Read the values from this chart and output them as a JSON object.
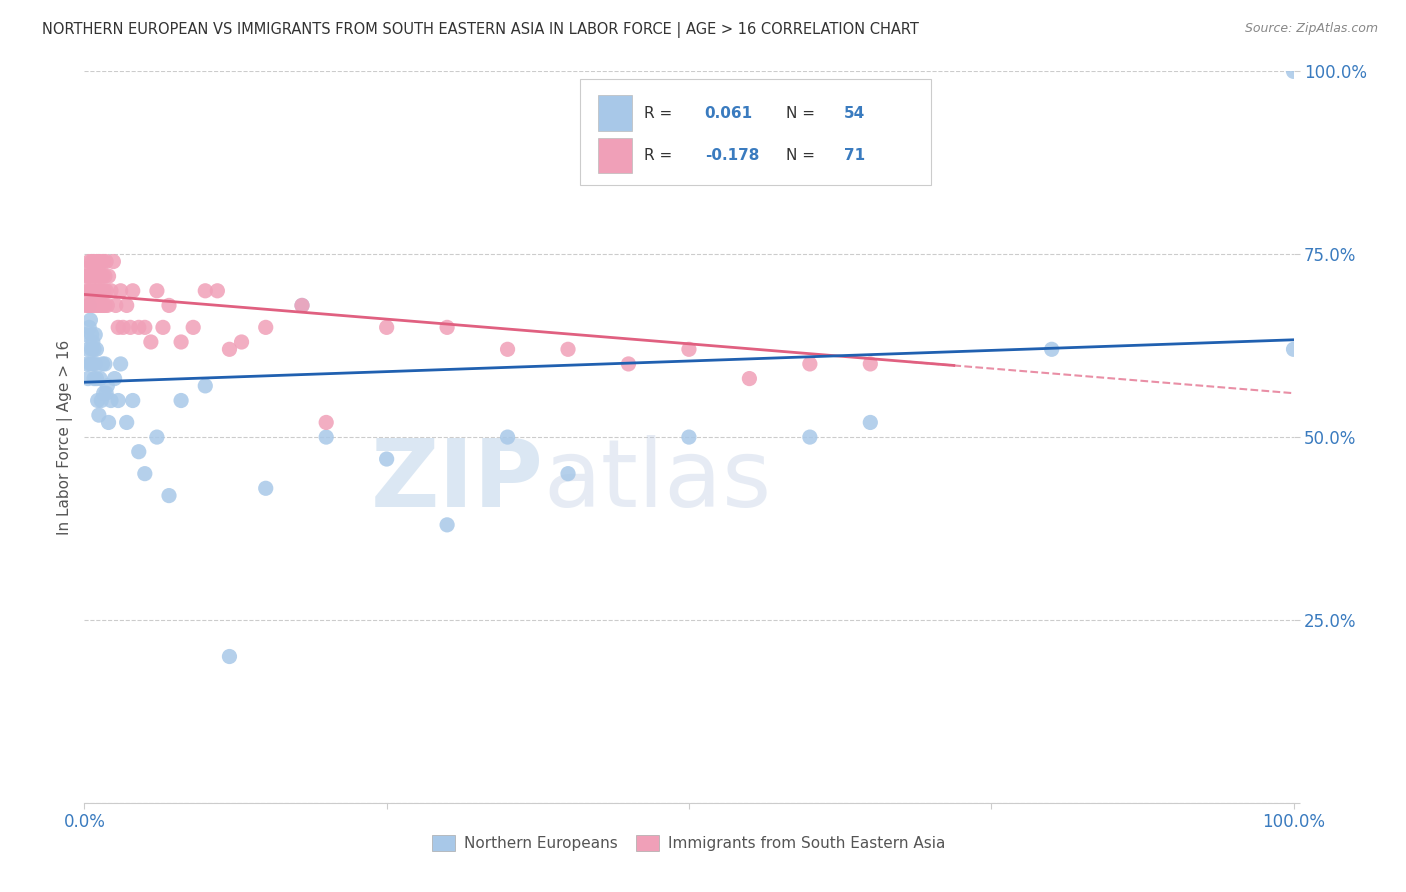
{
  "title": "NORTHERN EUROPEAN VS IMMIGRANTS FROM SOUTH EASTERN ASIA IN LABOR FORCE | AGE > 16 CORRELATION CHART",
  "source": "Source: ZipAtlas.com",
  "ylabel": "In Labor Force | Age > 16",
  "watermark_left": "ZIP",
  "watermark_right": "atlas",
  "blue_color": "#a8c8e8",
  "pink_color": "#f0a0b8",
  "blue_line_color": "#2060b0",
  "pink_line_color": "#e06080",
  "legend_R1": "0.061",
  "legend_N1": "54",
  "legend_R2": "-0.178",
  "legend_N2": "71",
  "blue_scatter_x": [
    0.001,
    0.002,
    0.003,
    0.003,
    0.004,
    0.004,
    0.005,
    0.005,
    0.006,
    0.006,
    0.007,
    0.007,
    0.008,
    0.008,
    0.009,
    0.009,
    0.01,
    0.01,
    0.011,
    0.012,
    0.013,
    0.014,
    0.015,
    0.016,
    0.017,
    0.018,
    0.019,
    0.02,
    0.022,
    0.025,
    0.028,
    0.03,
    0.035,
    0.04,
    0.045,
    0.05,
    0.06,
    0.07,
    0.08,
    0.1,
    0.12,
    0.15,
    0.18,
    0.2,
    0.25,
    0.3,
    0.35,
    0.4,
    0.5,
    0.6,
    0.65,
    0.8,
    1.0,
    1.0
  ],
  "blue_scatter_y": [
    0.64,
    0.6,
    0.58,
    0.62,
    0.65,
    0.68,
    0.6,
    0.66,
    0.62,
    0.64,
    0.6,
    0.63,
    0.58,
    0.62,
    0.6,
    0.64,
    0.58,
    0.62,
    0.55,
    0.53,
    0.58,
    0.55,
    0.6,
    0.56,
    0.6,
    0.56,
    0.57,
    0.52,
    0.55,
    0.58,
    0.55,
    0.6,
    0.52,
    0.55,
    0.48,
    0.45,
    0.5,
    0.42,
    0.55,
    0.57,
    0.2,
    0.43,
    0.68,
    0.5,
    0.47,
    0.38,
    0.5,
    0.45,
    0.5,
    0.5,
    0.52,
    0.62,
    0.62,
    1.0
  ],
  "pink_scatter_x": [
    0.001,
    0.001,
    0.002,
    0.002,
    0.003,
    0.003,
    0.004,
    0.004,
    0.005,
    0.005,
    0.006,
    0.006,
    0.007,
    0.007,
    0.008,
    0.008,
    0.009,
    0.009,
    0.01,
    0.01,
    0.011,
    0.011,
    0.012,
    0.012,
    0.013,
    0.013,
    0.014,
    0.014,
    0.015,
    0.015,
    0.016,
    0.016,
    0.017,
    0.017,
    0.018,
    0.018,
    0.019,
    0.02,
    0.022,
    0.024,
    0.026,
    0.028,
    0.03,
    0.032,
    0.035,
    0.038,
    0.04,
    0.045,
    0.05,
    0.055,
    0.06,
    0.065,
    0.07,
    0.08,
    0.09,
    0.1,
    0.11,
    0.12,
    0.13,
    0.15,
    0.18,
    0.2,
    0.25,
    0.3,
    0.35,
    0.4,
    0.45,
    0.5,
    0.55,
    0.6,
    0.65
  ],
  "pink_scatter_y": [
    0.68,
    0.72,
    0.7,
    0.73,
    0.68,
    0.72,
    0.7,
    0.74,
    0.68,
    0.72,
    0.7,
    0.74,
    0.68,
    0.72,
    0.7,
    0.74,
    0.68,
    0.72,
    0.7,
    0.74,
    0.68,
    0.72,
    0.7,
    0.74,
    0.68,
    0.72,
    0.7,
    0.74,
    0.68,
    0.72,
    0.7,
    0.74,
    0.68,
    0.72,
    0.7,
    0.74,
    0.68,
    0.72,
    0.7,
    0.74,
    0.68,
    0.65,
    0.7,
    0.65,
    0.68,
    0.65,
    0.7,
    0.65,
    0.65,
    0.63,
    0.7,
    0.65,
    0.68,
    0.63,
    0.65,
    0.7,
    0.7,
    0.62,
    0.63,
    0.65,
    0.68,
    0.52,
    0.65,
    0.65,
    0.62,
    0.62,
    0.6,
    0.62,
    0.58,
    0.6,
    0.6
  ]
}
